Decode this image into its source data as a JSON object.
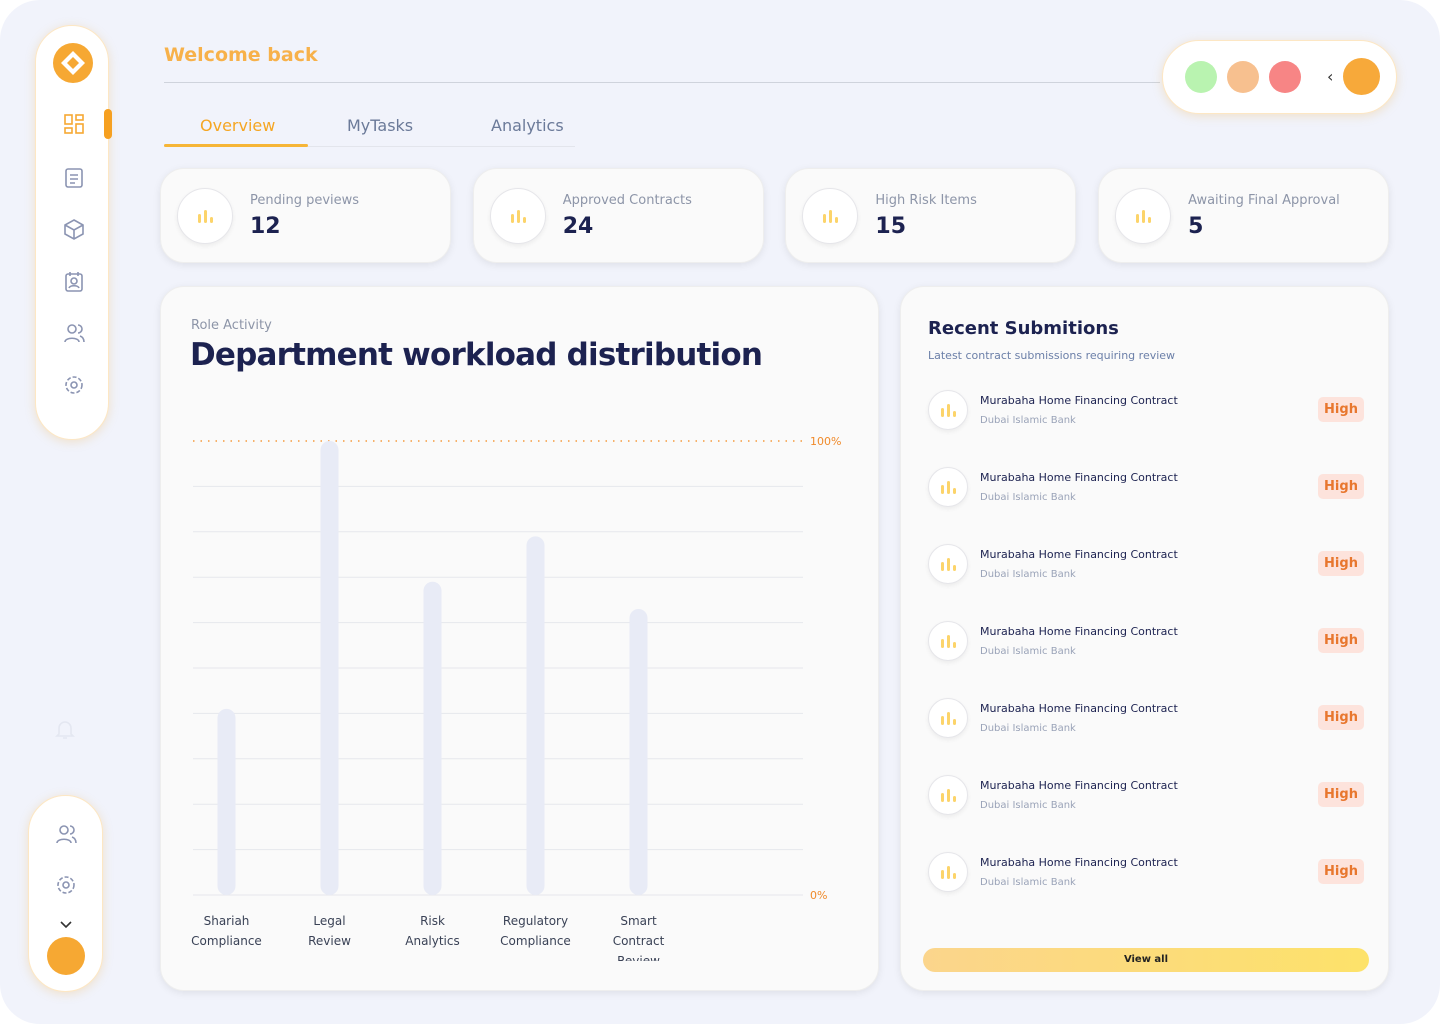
{
  "header": {
    "title": "Welcome back"
  },
  "tabs": [
    "Overview",
    "MyTasks",
    "Analytics"
  ],
  "stats": [
    {
      "label": "Pending peviews",
      "value": "12"
    },
    {
      "label": "Approved Contracts",
      "value": "24"
    },
    {
      "label": "High Risk Items",
      "value": "15"
    },
    {
      "label": "Awaiting Final Approval",
      "value": "5"
    }
  ],
  "chart_data": {
    "type": "bar",
    "subtitle": "Role Activity",
    "title": "Department workload distribution",
    "categories": [
      "Shariah Compliance",
      "Legal Review",
      "Risk Analytics",
      "Regulatory Compliance",
      "Smart Contract Review"
    ],
    "values": [
      41,
      100,
      69,
      79,
      63
    ],
    "color": "#e8ebf6",
    "ylim": [
      0,
      100
    ],
    "yticks": [
      {
        "value": 0,
        "label": "0%"
      },
      {
        "value": 100,
        "label": "100%"
      }
    ],
    "grid": true
  },
  "submissions": {
    "title": "Recent Submitions",
    "subtitle": "Latest contract submissions requiring review",
    "items": [
      {
        "title": "Murabaha Home Financing Contract",
        "bank": "Dubai Islamic Bank",
        "risk": "High"
      },
      {
        "title": "Murabaha Home Financing Contract",
        "bank": "Dubai Islamic Bank",
        "risk": "High"
      },
      {
        "title": "Murabaha Home Financing Contract",
        "bank": "Dubai Islamic Bank",
        "risk": "High"
      },
      {
        "title": "Murabaha Home Financing Contract",
        "bank": "Dubai Islamic Bank",
        "risk": "High"
      },
      {
        "title": "Murabaha Home Financing Contract",
        "bank": "Dubai Islamic Bank",
        "risk": "High"
      },
      {
        "title": "Murabaha Home Financing Contract",
        "bank": "Dubai Islamic Bank",
        "risk": "High"
      },
      {
        "title": "Murabaha Home Financing Contract",
        "bank": "Dubai Islamic Bank",
        "risk": "High"
      }
    ],
    "button": "View all"
  }
}
